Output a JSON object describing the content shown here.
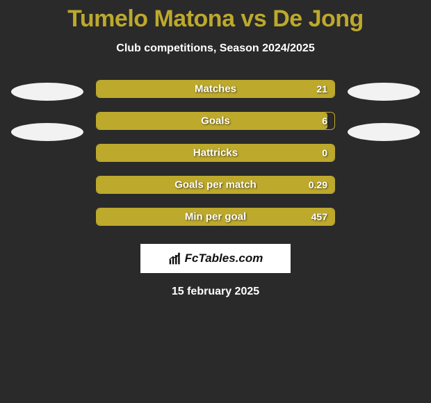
{
  "title": "Tumelo Matona vs De Jong",
  "subtitle": "Club competitions, Season 2024/2025",
  "date": "15 february 2025",
  "logo_text": "FcTables.com",
  "accent_color": "#bda92c",
  "background_color": "#2a2a2a",
  "text_color": "#ffffff",
  "bars": [
    {
      "label": "Matches",
      "value": "21",
      "fill_pct": 100
    },
    {
      "label": "Goals",
      "value": "6",
      "fill_pct": 97
    },
    {
      "label": "Hattricks",
      "value": "0",
      "fill_pct": 100
    },
    {
      "label": "Goals per match",
      "value": "0.29",
      "fill_pct": 100
    },
    {
      "label": "Min per goal",
      "value": "457",
      "fill_pct": 100
    }
  ],
  "left_ellipses": 2,
  "right_ellipses": 2
}
